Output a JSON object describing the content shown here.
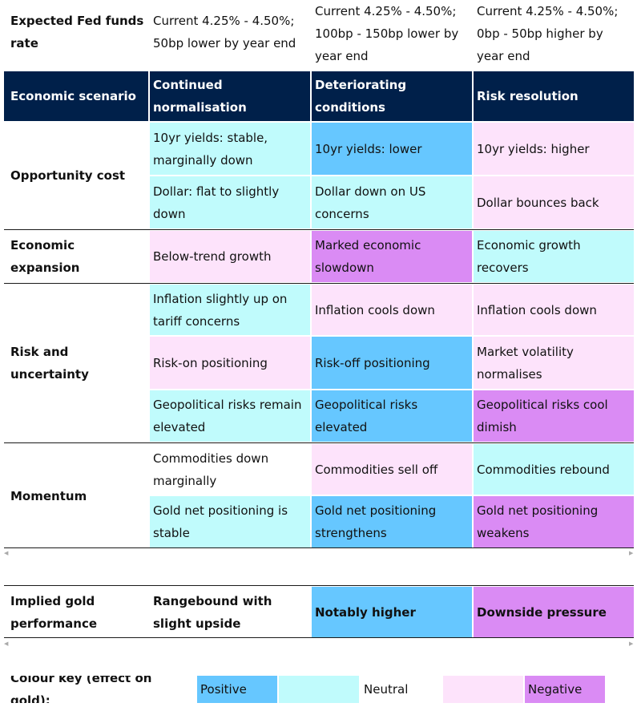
{
  "colors": {
    "header_bg": "#00204a",
    "positive": "#66c7ff",
    "neutral": "#c0fbfc",
    "negative_light": "#fde3fb",
    "negative": "#da8bf4"
  },
  "fed_row": {
    "label": "Expected Fed funds rate",
    "continued": "Current 4.25% - 4.50%; 50bp lower by year end",
    "deteriorating": "Current 4.25% - 4.50%; 100bp - 150bp lower by year end",
    "risk": "Current 4.25% - 4.50%; 0bp - 50bp higher by year end"
  },
  "header": {
    "scenario": "Economic scenario",
    "continued": "Continued normalisation",
    "deteriorating": "Deteriorating conditions",
    "risk": "Risk resolution"
  },
  "groups": {
    "opportunity_cost": {
      "label": "Opportunity cost",
      "rows": [
        {
          "continued": "10yr yields: stable, marginally down",
          "continued_tone": "neutral",
          "deteriorating": "10yr yields: lower",
          "deteriorating_tone": "positive",
          "risk": "10yr yields: higher",
          "risk_tone": "negative_light"
        },
        {
          "continued": "Dollar: flat to slightly down",
          "continued_tone": "neutral",
          "deteriorating": "Dollar down on US concerns",
          "deteriorating_tone": "neutral",
          "risk": "Dollar bounces back",
          "risk_tone": "negative_light"
        }
      ]
    },
    "economic_expansion": {
      "label": "Economic expansion",
      "rows": [
        {
          "continued": "Below-trend growth",
          "continued_tone": "negative_light",
          "deteriorating": "Marked economic slowdown",
          "deteriorating_tone": "negative",
          "risk": "Economic growth recovers",
          "risk_tone": "neutral"
        }
      ]
    },
    "risk_uncertainty": {
      "label": "Risk and uncertainty",
      "rows": [
        {
          "continued": "Inflation slightly up on tariff concerns",
          "continued_tone": "neutral",
          "deteriorating": "Inflation cools down",
          "deteriorating_tone": "negative_light",
          "risk": "Inflation cools down",
          "risk_tone": "negative_light"
        },
        {
          "continued": "Risk-on positioning",
          "continued_tone": "negative_light",
          "deteriorating": "Risk-off positioning",
          "deteriorating_tone": "positive",
          "risk": "Market volatility normalises",
          "risk_tone": "negative_light"
        },
        {
          "continued": "Geopolitical risks remain elevated",
          "continued_tone": "neutral",
          "deteriorating": "Geopolitical risks elevated",
          "deteriorating_tone": "positive",
          "risk": "Geopolitical risks cool dimish",
          "risk_tone": "negative"
        }
      ]
    },
    "momentum": {
      "label": "Momentum",
      "rows": [
        {
          "continued": "Commodities down marginally",
          "continued_tone": "none",
          "deteriorating": "Commodities sell off",
          "deteriorating_tone": "negative_light",
          "risk": "Commodities rebound",
          "risk_tone": "neutral"
        },
        {
          "continued": "Gold net positioning is stable",
          "continued_tone": "neutral",
          "deteriorating": "Gold net positioning strengthens",
          "deteriorating_tone": "positive",
          "risk": "Gold net positioning weakens",
          "risk_tone": "negative"
        }
      ]
    }
  },
  "implied": {
    "label": "Implied gold performance",
    "continued": "Rangebound with slight upside",
    "continued_tone": "none",
    "deteriorating": "Notably higher",
    "deteriorating_tone": "positive",
    "risk": "Downside pressure",
    "risk_tone": "negative"
  },
  "key": {
    "label": "Colour key (effect on gold):",
    "positive": "Positive",
    "neutral": "Neutral",
    "negative": "Negative"
  },
  "icons": {
    "scroll_left": "scroll-left-icon",
    "scroll_right": "scroll-right-icon"
  }
}
